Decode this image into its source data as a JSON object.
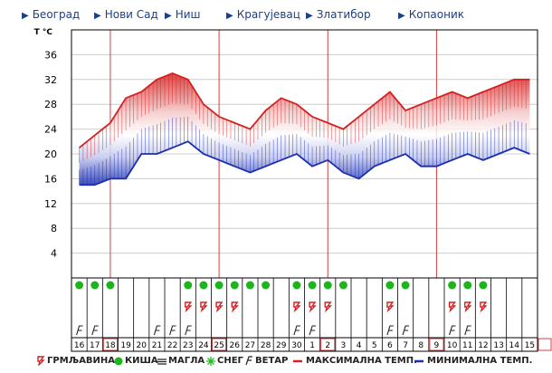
{
  "nav": {
    "items": [
      "Београд",
      "Нови Сад",
      "Ниш",
      "Крагујевац",
      "Златибор",
      "Копаоник"
    ]
  },
  "chart_data": {
    "type": "area",
    "title": "",
    "ylabel": "T °C",
    "ylim": [
      0,
      40
    ],
    "yticks": [
      4,
      8,
      12,
      16,
      20,
      24,
      28,
      32,
      36
    ],
    "grid": true,
    "days": [
      "16",
      "17",
      "18",
      "19",
      "20",
      "21",
      "22",
      "23",
      "24",
      "25",
      "26",
      "27",
      "28",
      "29",
      "30",
      "1",
      "2",
      "3",
      "4",
      "5",
      "6",
      "7",
      "8",
      "9",
      "10",
      "11",
      "12",
      "13",
      "14",
      "15"
    ],
    "boxed_days": [
      "18",
      "25",
      "2",
      "9"
    ],
    "max_temp": [
      21,
      23,
      25,
      29,
      30,
      32,
      33,
      32,
      28,
      26,
      25,
      24,
      27,
      29,
      28,
      26,
      25,
      24,
      26,
      28,
      30,
      27,
      28,
      29,
      30,
      29,
      30,
      31,
      32,
      32
    ],
    "min_temp": [
      15,
      15,
      16,
      16,
      20,
      20,
      21,
      22,
      20,
      19,
      18,
      17,
      18,
      19,
      20,
      18,
      19,
      17,
      16,
      18,
      19,
      20,
      18,
      18,
      19,
      20,
      19,
      20,
      21,
      20
    ],
    "colors": {
      "max": "#d42020",
      "min": "#1a2fb0",
      "grid": "#cccccc",
      "separator": "#d04040"
    },
    "icons": {
      "rain": [
        "16",
        "17",
        "18",
        "23",
        "24",
        "25",
        "26",
        "27",
        "28",
        "30",
        "1",
        "2",
        "3",
        "6",
        "7",
        "10",
        "11",
        "12"
      ],
      "thunder": [
        "23",
        "24",
        "25",
        "26",
        "30",
        "1",
        "2",
        "6",
        "10",
        "11",
        "12"
      ],
      "wind": [
        "16",
        "17",
        "21",
        "22",
        "23",
        "30",
        "1",
        "6",
        "7",
        "10",
        "11"
      ]
    }
  },
  "legend": {
    "thunder": "ГРМЉАВИНА",
    "rain": "КИША",
    "fog": "МАГЛА",
    "snow": "СНЕГ",
    "wind": "ВЕТАР",
    "max": "МАКСИМАЛНА ТЕМП.",
    "min": "МИНИМАЛНА ТЕМП."
  }
}
